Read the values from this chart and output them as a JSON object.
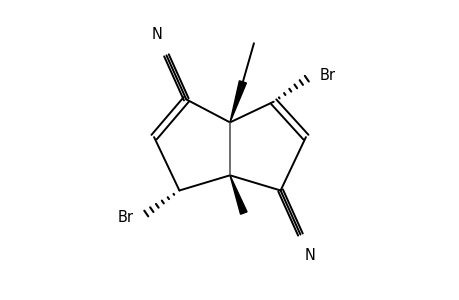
{
  "bg_color": "#ffffff",
  "line_color": "#000000",
  "lw": 1.4,
  "fs": 10.5,
  "xlim": [
    -2.8,
    2.8
  ],
  "ylim": [
    -3.2,
    3.2
  ]
}
